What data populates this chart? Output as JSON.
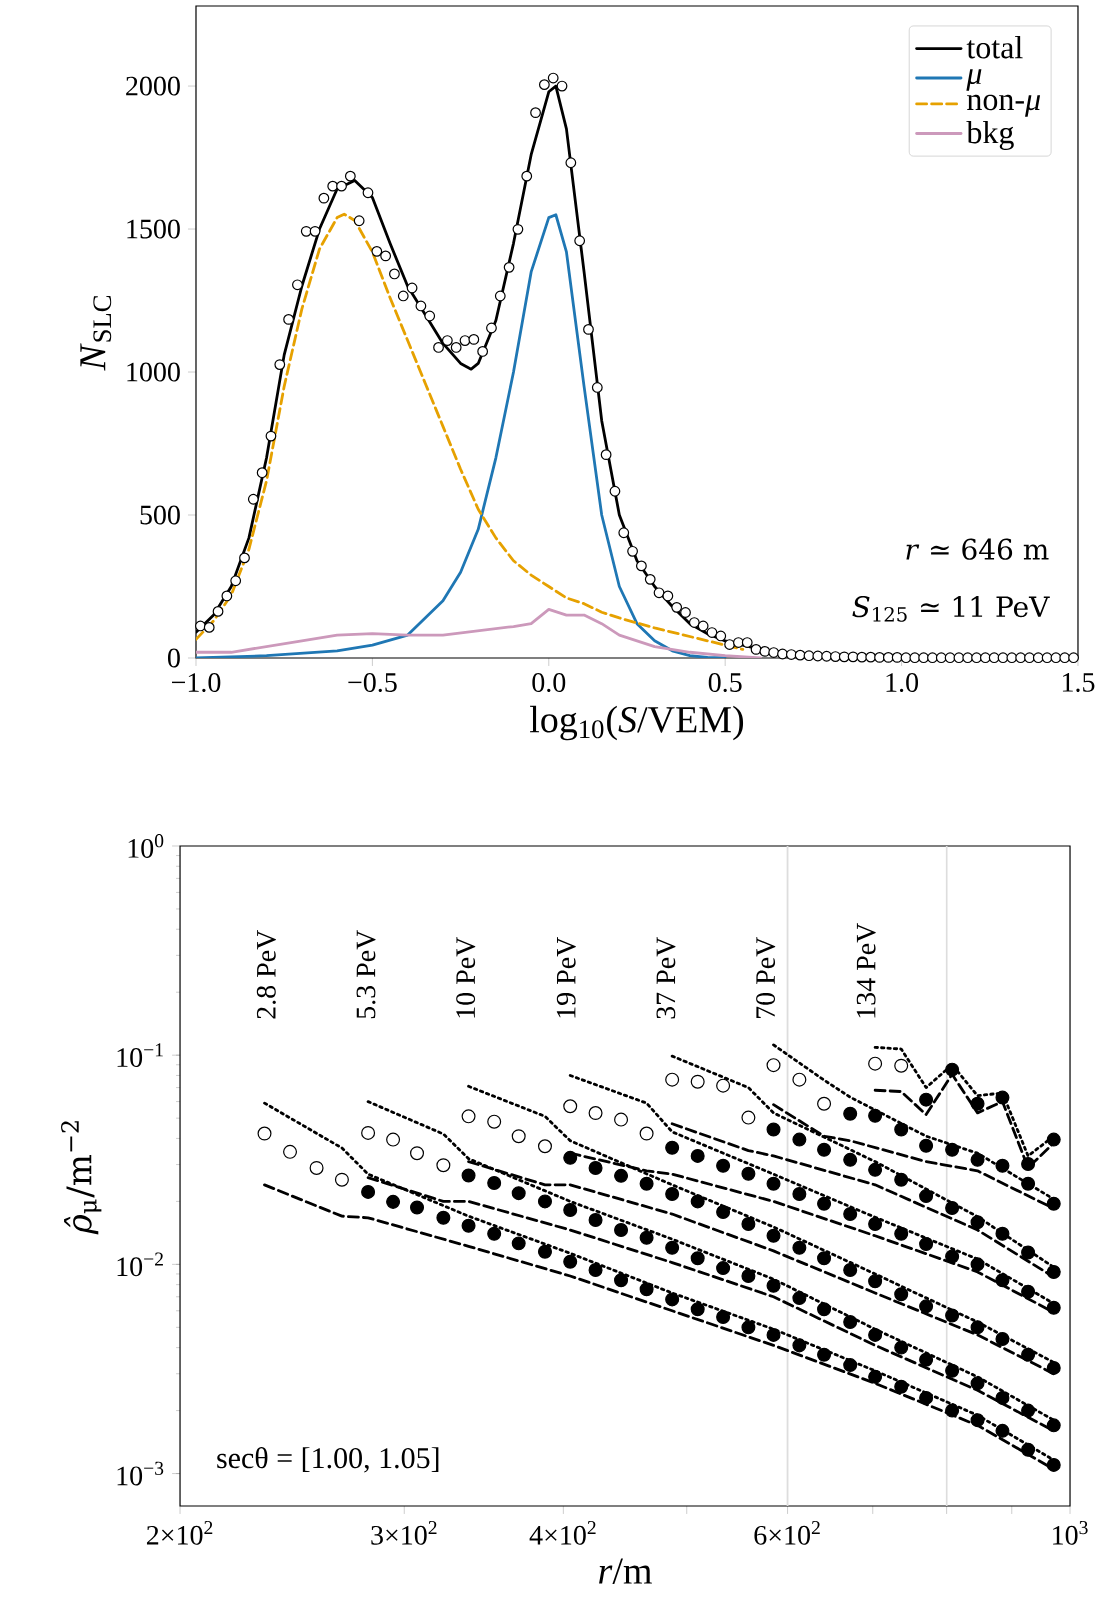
{
  "chart_data": [
    {
      "type": "line",
      "xlabel": "log$_{10}$(*S*/VEM)",
      "ylabel": "*N*$_{SLC}$",
      "xlim": [
        -1.0,
        1.5
      ],
      "ylim": [
        0,
        2280
      ],
      "xticks": [
        {
          "value": -1.0,
          "label": "−1.0"
        },
        {
          "value": -0.5,
          "label": "−0.5"
        },
        {
          "value": 0.0,
          "label": "0.0"
        },
        {
          "value": 0.5,
          "label": "0.5"
        },
        {
          "value": 1.0,
          "label": "1.0"
        },
        {
          "value": 1.5,
          "label": "1.5"
        }
      ],
      "yticks": [
        0,
        500,
        1000,
        1500,
        2000
      ],
      "legend": "top right",
      "annotations": [
        "*r* ≃ 646 m",
        "*S*$_{125}$ ≃ 11 PeV"
      ],
      "series": [
        {
          "name": "total",
          "color": "#000000",
          "line_style": "solid",
          "x": [
            -1.0,
            -0.95,
            -0.9,
            -0.85,
            -0.8,
            -0.75,
            -0.7,
            -0.65,
            -0.6,
            -0.55,
            -0.5,
            -0.45,
            -0.4,
            -0.35,
            -0.3,
            -0.25,
            -0.22,
            -0.2,
            -0.15,
            -0.1,
            -0.05,
            0.0,
            0.02,
            0.05,
            0.1,
            0.15,
            0.2,
            0.25,
            0.3,
            0.35,
            0.4,
            0.45,
            0.5,
            0.6,
            0.7,
            0.8,
            0.9,
            1.0,
            1.25,
            1.5
          ],
          "values": [
            90,
            150,
            250,
            420,
            700,
            1060,
            1300,
            1500,
            1640,
            1670,
            1610,
            1450,
            1300,
            1200,
            1100,
            1030,
            1010,
            1030,
            1180,
            1450,
            1760,
            1980,
            2000,
            1850,
            1350,
            830,
            500,
            340,
            250,
            180,
            120,
            85,
            60,
            30,
            14,
            7,
            4,
            2,
            1,
            0
          ]
        },
        {
          "name": "*μ*",
          "color": "#1f77b4",
          "line_style": "solid",
          "x": [
            -1.0,
            -0.8,
            -0.6,
            -0.5,
            -0.4,
            -0.3,
            -0.25,
            -0.2,
            -0.15,
            -0.1,
            -0.05,
            0.0,
            0.02,
            0.05,
            0.1,
            0.15,
            0.2,
            0.25,
            0.3,
            0.35,
            0.4,
            0.45,
            0.5
          ],
          "values": [
            0,
            8,
            25,
            45,
            80,
            200,
            300,
            450,
            700,
            1000,
            1350,
            1540,
            1550,
            1420,
            950,
            500,
            250,
            120,
            60,
            25,
            8,
            2,
            0
          ]
        },
        {
          "name": "non-*μ*",
          "color": "#e6a100",
          "line_style": "dashed",
          "x": [
            -1.0,
            -0.95,
            -0.9,
            -0.85,
            -0.8,
            -0.75,
            -0.7,
            -0.65,
            -0.6,
            -0.58,
            -0.55,
            -0.5,
            -0.45,
            -0.4,
            -0.35,
            -0.3,
            -0.25,
            -0.2,
            -0.15,
            -0.1,
            -0.05,
            0.0,
            0.05,
            0.1,
            0.15,
            0.2,
            0.3,
            0.4,
            0.5,
            0.55
          ],
          "values": [
            65,
            130,
            220,
            380,
            620,
            950,
            1220,
            1430,
            1540,
            1552,
            1530,
            1420,
            1260,
            1110,
            960,
            810,
            660,
            520,
            420,
            340,
            290,
            250,
            210,
            190,
            160,
            140,
            105,
            75,
            45,
            30
          ]
        },
        {
          "name": "bkg",
          "color": "#cc99bb",
          "line_style": "solid",
          "x": [
            -1.0,
            -0.9,
            -0.8,
            -0.7,
            -0.6,
            -0.5,
            -0.4,
            -0.3,
            -0.2,
            -0.1,
            -0.05,
            0.0,
            0.05,
            0.1,
            0.15,
            0.2,
            0.3,
            0.4,
            0.5,
            0.6
          ],
          "values": [
            20,
            20,
            40,
            60,
            80,
            85,
            80,
            80,
            95,
            110,
            120,
            170,
            150,
            150,
            120,
            80,
            40,
            20,
            8,
            0
          ]
        },
        {
          "type": "scatter",
          "color": "#ffffff",
          "x": [
            -0.9875,
            -0.9625,
            -0.9375,
            -0.9125,
            -0.8875,
            -0.8625,
            -0.8375,
            -0.8125,
            -0.7875,
            -0.7625,
            -0.7375,
            -0.7125,
            -0.6875,
            -0.6625,
            -0.6375,
            -0.6125,
            -0.5875,
            -0.5625,
            -0.5375,
            -0.5125,
            -0.4875,
            -0.4625,
            -0.4375,
            -0.4125,
            -0.3875,
            -0.3625,
            -0.3375,
            -0.3125,
            -0.2875,
            -0.2625,
            -0.2375,
            -0.2125,
            -0.1875,
            -0.1625,
            -0.1375,
            -0.1125,
            -0.0875,
            -0.0625,
            -0.0375,
            -0.0125,
            0.0125,
            0.0375,
            0.0625,
            0.0875,
            0.1125,
            0.1375,
            0.1625,
            0.1875,
            0.2125,
            0.2375,
            0.2625,
            0.2875,
            0.3125,
            0.3375,
            0.3625,
            0.3875,
            0.4125,
            0.4375,
            0.4625,
            0.4875,
            0.5125,
            0.5375,
            0.5625,
            0.5875,
            0.6125,
            0.6375,
            0.6625,
            0.6875,
            0.7125,
            0.7375,
            0.7625,
            0.7875,
            0.8125,
            0.8375,
            0.8625,
            0.8875,
            0.9125,
            0.9375,
            0.9625,
            0.9875,
            1.0125,
            1.0375,
            1.0625,
            1.0875,
            1.1125,
            1.1375,
            1.1625,
            1.1875,
            1.2125,
            1.2375,
            1.2625,
            1.2875,
            1.3125,
            1.3375,
            1.3625,
            1.3875,
            1.4125,
            1.4375,
            1.4625,
            1.4875
          ],
          "values": [
            112,
            107,
            163,
            217,
            270,
            350,
            555,
            648,
            776,
            1026,
            1184,
            1305,
            1492,
            1492,
            1608,
            1650,
            1650,
            1685,
            1529,
            1627,
            1422,
            1406,
            1343,
            1266,
            1294,
            1231,
            1196,
            1086,
            1110,
            1086,
            1110,
            1114,
            1072,
            1154,
            1266,
            1366,
            1499,
            1685,
            1907,
            2005,
            2028,
            2000,
            1732,
            1459,
            1149,
            946,
            711,
            583,
            438,
            373,
            322,
            275,
            228,
            217,
            177,
            159,
            124,
            112,
            89,
            77,
            47,
            54,
            54,
            30,
            23,
            19,
            14,
            12,
            10,
            8,
            7,
            6,
            5,
            4,
            4,
            3,
            3,
            2,
            2,
            2,
            1,
            1,
            1,
            1,
            1,
            1,
            1,
            1,
            1,
            1,
            1,
            1,
            1,
            1,
            1,
            1,
            1,
            1,
            1,
            1
          ]
        }
      ]
    },
    {
      "type": "scatter",
      "log": "xy",
      "xlabel": "*r*/m",
      "ylabel": "*ρ̂*$_{μ}$/m$^{−2}$",
      "xlim": [
        200,
        1000
      ],
      "ylim": [
        0.0007,
        1
      ],
      "xticks": [
        {
          "value": 200,
          "label": "2×10$^{2}$"
        },
        {
          "value": 300,
          "label": "3×10$^{2}$"
        },
        {
          "value": 400,
          "label": "4×10$^{2}$"
        },
        {
          "value": 500,
          "label": null
        },
        {
          "value": 600,
          "label": "6×10$^{2}$"
        },
        {
          "value": 700,
          "label": null
        },
        {
          "value": 800,
          "label": null
        },
        {
          "value": 900,
          "label": null
        },
        {
          "value": 1000,
          "label": "10$^{3}$"
        }
      ],
      "yticks": [
        {
          "value": 0.001,
          "label": "10$^{−3}$"
        },
        {
          "value": 0.01,
          "label": "10$^{−2}$"
        },
        {
          "value": 0.1,
          "label": "10$^{−1}$"
        },
        {
          "value": 1,
          "label": "10$^{0}$"
        }
      ],
      "ref_lines": [
        {
          "axis": "x",
          "value": 600,
          "color": "#dddddd"
        },
        {
          "axis": "x",
          "value": 800,
          "color": "#dddddd"
        }
      ],
      "annotations": [
        "secθ = [1.00, 1.05]",
        "2.8 PeV",
        "5.3 PeV",
        "10 PeV",
        "19 PeV",
        "37 PeV",
        "70 PeV",
        "134 PeV"
      ],
      "series": [
        {
          "type": "line",
          "line_style": "dotted",
          "color": "#000000",
          "x": [
            233,
            268,
            281,
            337,
            405,
            487,
            585,
            703,
            846,
            971
          ],
          "values": [
            0.059,
            0.036,
            0.027,
            0.017,
            0.0113,
            0.0073,
            0.0049,
            0.0031,
            0.0019,
            0.00116
          ]
        },
        {
          "type": "line",
          "line_style": "dashed",
          "color": "#000000",
          "x": [
            233,
            268,
            281,
            337,
            405,
            487,
            585,
            703,
            846,
            971
          ],
          "values": [
            0.024,
            0.017,
            0.0167,
            0.0122,
            0.0088,
            0.006,
            0.0041,
            0.0027,
            0.0017,
            0.00105
          ]
        },
        {
          "type": "line",
          "line_style": "dotted",
          "color": "#000000",
          "x": [
            281,
            322,
            337,
            405,
            487,
            585,
            703,
            846,
            971
          ],
          "values": [
            0.06,
            0.042,
            0.032,
            0.02,
            0.0132,
            0.0085,
            0.0049,
            0.0029,
            0.0018
          ]
        },
        {
          "type": "line",
          "line_style": "dashed",
          "color": "#000000",
          "x": [
            281,
            322,
            337,
            405,
            487,
            585,
            703,
            846,
            971
          ],
          "values": [
            0.026,
            0.02,
            0.02,
            0.0146,
            0.0102,
            0.007,
            0.0041,
            0.0025,
            0.0016
          ]
        },
        {
          "type": "line",
          "line_style": "dotted",
          "color": "#000000",
          "x": [
            337,
            387,
            405,
            487,
            585,
            703,
            846,
            971
          ],
          "values": [
            0.071,
            0.051,
            0.039,
            0.024,
            0.0151,
            0.009,
            0.0053,
            0.0034
          ]
        },
        {
          "type": "line",
          "line_style": "dashed",
          "color": "#000000",
          "x": [
            337,
            387,
            405,
            487,
            585,
            703,
            846,
            971
          ],
          "values": [
            0.031,
            0.024,
            0.024,
            0.0174,
            0.0116,
            0.0073,
            0.0046,
            0.003
          ]
        },
        {
          "type": "line",
          "line_style": "dotted",
          "color": "#000000",
          "x": [
            405,
            465,
            487,
            585,
            703,
            846,
            971
          ],
          "values": [
            0.08,
            0.059,
            0.043,
            0.027,
            0.0168,
            0.0106,
            0.0065
          ]
        },
        {
          "type": "line",
          "line_style": "dashed",
          "color": "#000000",
          "x": [
            405,
            465,
            487,
            585,
            703,
            846,
            971
          ],
          "values": [
            0.034,
            0.028,
            0.027,
            0.02,
            0.0137,
            0.0092,
            0.0059
          ]
        },
        {
          "type": "line",
          "line_style": "dotted",
          "color": "#000000",
          "x": [
            487,
            559,
            585,
            703,
            846,
            971
          ],
          "values": [
            0.099,
            0.07,
            0.053,
            0.031,
            0.0169,
            0.0097
          ]
        },
        {
          "type": "line",
          "line_style": "dashed",
          "color": "#000000",
          "x": [
            487,
            559,
            585,
            703,
            846,
            971
          ],
          "values": [
            0.047,
            0.035,
            0.033,
            0.024,
            0.0146,
            0.0087
          ]
        },
        {
          "type": "line",
          "line_style": "dotted",
          "color": "#000000",
          "x": [
            585,
            641,
            672,
            771,
            846,
            971
          ],
          "values": [
            0.112,
            0.076,
            0.063,
            0.041,
            0.034,
            0.0205
          ]
        },
        {
          "type": "line",
          "line_style": "dashed",
          "color": "#000000",
          "x": [
            585,
            641,
            672,
            771,
            846,
            971
          ],
          "values": [
            0.058,
            0.041,
            0.039,
            0.031,
            0.028,
            0.0185
          ]
        },
        {
          "type": "line",
          "line_style": "dotted",
          "color": "#000000",
          "x": [
            703,
            737,
            771,
            808,
            846,
            885,
            927,
            971
          ],
          "values": [
            0.109,
            0.107,
            0.07,
            0.09,
            0.064,
            0.066,
            0.033,
            0.041
          ]
        },
        {
          "type": "line",
          "line_style": "dashed",
          "color": "#000000",
          "x": [
            703,
            737,
            771,
            808,
            846,
            885,
            927,
            971
          ],
          "values": [
            0.068,
            0.067,
            0.052,
            0.081,
            0.053,
            0.06,
            0.029,
            0.038
          ]
        },
        {
          "color": "#ffffff",
          "x": [
            233,
            244,
            256,
            268
          ],
          "values": [
            0.0422,
            0.0345,
            0.0289,
            0.0254
          ]
        },
        {
          "color": "#ffffff",
          "x": [
            281,
            294,
            307,
            322
          ],
          "values": [
            0.0425,
            0.0395,
            0.034,
            0.0298
          ]
        },
        {
          "color": "#ffffff",
          "x": [
            337,
            353,
            369,
            387
          ],
          "values": [
            0.051,
            0.0481,
            0.041,
            0.0367
          ]
        },
        {
          "color": "#ffffff",
          "x": [
            405,
            424,
            444,
            465
          ],
          "values": [
            0.057,
            0.0529,
            0.0492,
            0.0422
          ]
        },
        {
          "color": "#ffffff",
          "x": [
            487,
            510,
            534,
            559
          ],
          "values": [
            0.0764,
            0.0747,
            0.0715,
            0.0503
          ]
        },
        {
          "color": "#ffffff",
          "x": [
            585,
            613,
            641
          ],
          "values": [
            0.0896,
            0.0764,
            0.0586
          ]
        },
        {
          "color": "#ffffff",
          "x": [
            703,
            737
          ],
          "values": [
            0.0911,
            0.0891
          ]
        },
        {
          "color": "#000000",
          "x": [
            281,
            294,
            307,
            322,
            337,
            353,
            369,
            387,
            405,
            424,
            444,
            465,
            487,
            510,
            534,
            559,
            585,
            613,
            641,
            672,
            703,
            737,
            771,
            808,
            846,
            885,
            927,
            971
          ],
          "values": [
            0.0222,
            0.0199,
            0.0187,
            0.0167,
            0.0153,
            0.014,
            0.0126,
            0.0115,
            0.0103,
            0.0094,
            0.0084,
            0.0076,
            0.0068,
            0.0061,
            0.0056,
            0.005,
            0.0046,
            0.0041,
            0.0037,
            0.0033,
            0.0029,
            0.0026,
            0.0023,
            0.002,
            0.0018,
            0.0016,
            0.0013,
            0.0011
          ]
        },
        {
          "color": "#000000",
          "x": [
            337,
            353,
            369,
            387,
            405,
            424,
            444,
            465,
            487,
            510,
            534,
            559,
            585,
            613,
            641,
            672,
            703,
            737,
            771,
            808,
            846,
            885,
            927,
            971
          ],
          "values": [
            0.0266,
            0.0245,
            0.0219,
            0.02,
            0.0182,
            0.0163,
            0.0146,
            0.0134,
            0.012,
            0.0107,
            0.0096,
            0.0088,
            0.0079,
            0.0069,
            0.0061,
            0.0053,
            0.0046,
            0.004,
            0.0035,
            0.0031,
            0.0027,
            0.0023,
            0.002,
            0.0017
          ]
        },
        {
          "color": "#000000",
          "x": [
            405,
            424,
            444,
            465,
            487,
            510,
            534,
            559,
            585,
            613,
            641,
            672,
            703,
            737,
            771,
            808,
            846,
            885,
            927,
            971
          ],
          "values": [
            0.0323,
            0.0289,
            0.0265,
            0.0243,
            0.0217,
            0.02,
            0.0178,
            0.0156,
            0.0137,
            0.012,
            0.0107,
            0.0094,
            0.0083,
            0.0072,
            0.0063,
            0.0057,
            0.005,
            0.0044,
            0.0037,
            0.0032
          ]
        },
        {
          "color": "#000000",
          "x": [
            487,
            510,
            534,
            559,
            585,
            613,
            641,
            672,
            703,
            737,
            771,
            808,
            846,
            885,
            927,
            971
          ],
          "values": [
            0.0361,
            0.033,
            0.0296,
            0.0271,
            0.0243,
            0.0217,
            0.0195,
            0.0174,
            0.0156,
            0.014,
            0.0125,
            0.0109,
            0.01,
            0.0084,
            0.0074,
            0.0062
          ]
        },
        {
          "color": "#000000",
          "x": [
            585,
            613,
            641,
            672,
            703,
            737,
            771,
            808,
            846,
            885,
            927,
            971
          ],
          "values": [
            0.0441,
            0.0395,
            0.0353,
            0.0316,
            0.0283,
            0.0254,
            0.0212,
            0.0186,
            0.0159,
            0.014,
            0.0114,
            0.0092
          ]
        },
        {
          "color": "#000000",
          "x": [
            672,
            703,
            737,
            771,
            808,
            846,
            885,
            927,
            971
          ],
          "values": [
            0.0525,
            0.0513,
            0.0441,
            0.0369,
            0.0353,
            0.0316,
            0.0296,
            0.0243,
            0.0195
          ]
        },
        {
          "color": "#000000",
          "x": [
            771,
            808,
            846,
            885,
            927,
            971
          ],
          "values": [
            0.0613,
            0.0853,
            0.0586,
            0.0627,
            0.0302,
            0.0395
          ]
        }
      ]
    }
  ]
}
